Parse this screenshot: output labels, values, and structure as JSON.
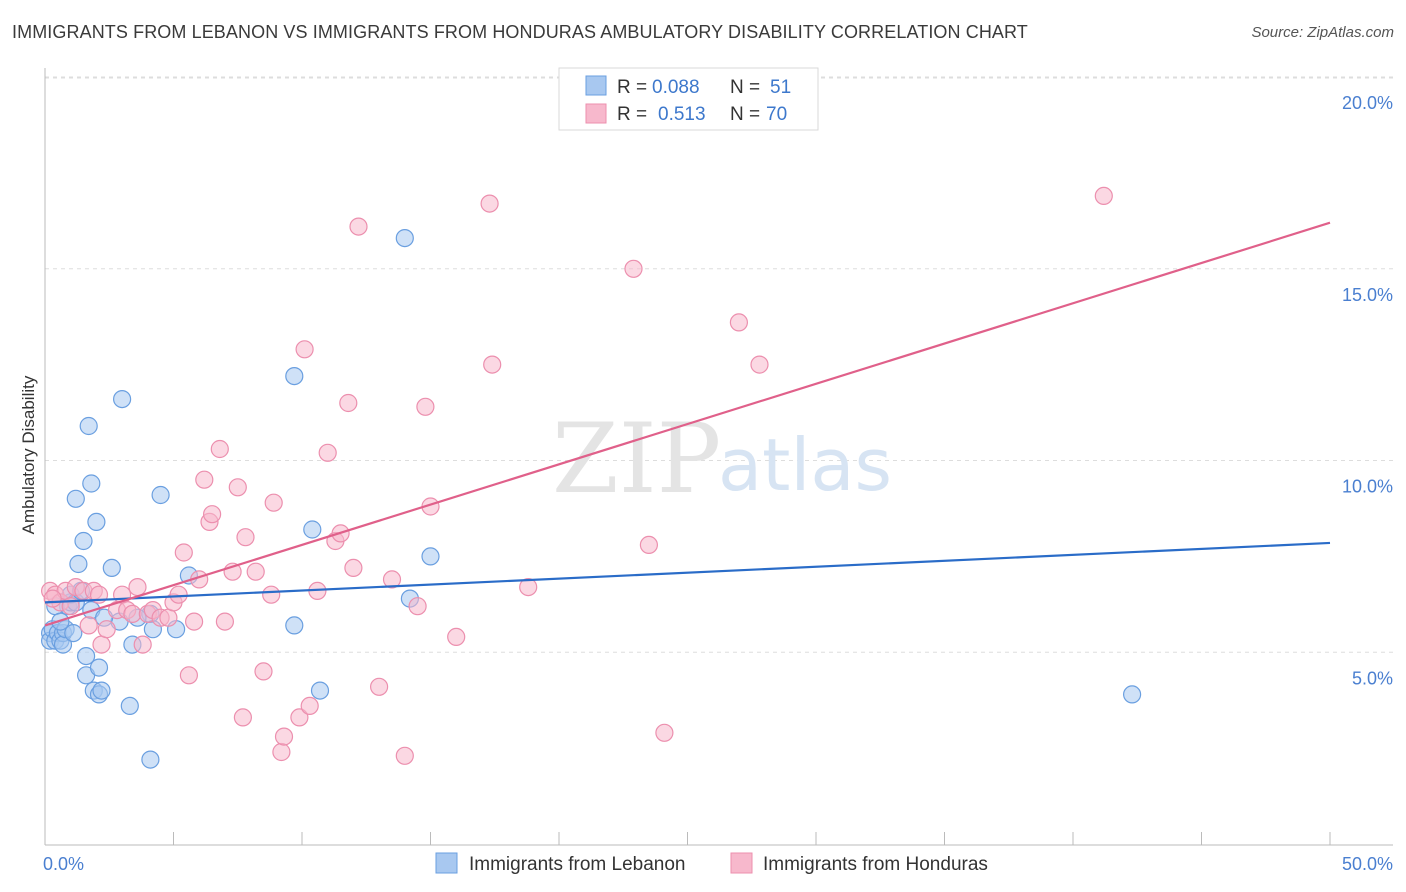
{
  "header": {
    "title": "IMMIGRANTS FROM LEBANON VS IMMIGRANTS FROM HONDURAS AMBULATORY DISABILITY CORRELATION CHART",
    "source": "Source: ZipAtlas.com"
  },
  "watermark": {
    "zip": "ZIP",
    "atlas": "atlas"
  },
  "legend": {
    "items": [
      {
        "r_label": "R =",
        "r_value": "0.088",
        "n_label": "N =",
        "n_value": "51"
      },
      {
        "r_label": "R =",
        "r_value": "0.513",
        "n_label": "N =",
        "n_value": "70"
      }
    ]
  },
  "colors": {
    "lebanon_fill": "#a8c8f0",
    "lebanon_stroke": "#6a9fe0",
    "lebanon_line": "#2a6cc8",
    "honduras_fill": "#f7b8cc",
    "honduras_stroke": "#ec8fae",
    "honduras_line": "#e0608a",
    "grid": "#dddddd",
    "tick_text": "#4a7fd0"
  },
  "chart_data": {
    "type": "scatter",
    "title": "IMMIGRANTS FROM LEBANON VS IMMIGRANTS FROM HONDURAS AMBULATORY DISABILITY CORRELATION CHART",
    "xlabel": "",
    "ylabel": "Ambulatory Disability",
    "xlim": [
      0,
      50
    ],
    "ylim": [
      0,
      20.5
    ],
    "x_tick_labels": [
      "0.0%",
      "50.0%"
    ],
    "y_ticks": [
      5,
      10,
      15,
      20
    ],
    "y_tick_labels": [
      "5.0%",
      "10.0%",
      "15.0%",
      "20.0%"
    ],
    "grid": true,
    "legend_position": "top-center",
    "series": [
      {
        "name": "Immigrants from Lebanon",
        "r": 0.088,
        "n": 51,
        "trend": {
          "x": [
            0,
            50
          ],
          "y": [
            6.3,
            7.85
          ]
        },
        "points": [
          [
            0.2,
            5.5
          ],
          [
            0.2,
            5.3
          ],
          [
            0.3,
            5.6
          ],
          [
            0.4,
            5.3
          ],
          [
            0.5,
            5.5
          ],
          [
            0.6,
            5.3
          ],
          [
            0.7,
            5.5
          ],
          [
            0.7,
            5.2
          ],
          [
            0.8,
            5.6
          ],
          [
            0.9,
            6.2
          ],
          [
            1.0,
            6.3
          ],
          [
            1.0,
            6.5
          ],
          [
            1.1,
            5.5
          ],
          [
            1.2,
            9.0
          ],
          [
            1.2,
            6.3
          ],
          [
            1.3,
            7.3
          ],
          [
            1.5,
            7.9
          ],
          [
            1.6,
            4.9
          ],
          [
            1.6,
            4.4
          ],
          [
            1.7,
            10.9
          ],
          [
            1.8,
            9.4
          ],
          [
            1.8,
            6.1
          ],
          [
            1.9,
            4.0
          ],
          [
            2.0,
            8.4
          ],
          [
            2.1,
            3.9
          ],
          [
            2.1,
            4.6
          ],
          [
            2.2,
            4.0
          ],
          [
            2.6,
            7.2
          ],
          [
            2.9,
            5.8
          ],
          [
            3.0,
            11.6
          ],
          [
            3.3,
            3.6
          ],
          [
            3.4,
            5.2
          ],
          [
            4.1,
            2.2
          ],
          [
            4.1,
            6.0
          ],
          [
            4.2,
            5.6
          ],
          [
            4.5,
            9.1
          ],
          [
            5.1,
            5.6
          ],
          [
            5.6,
            7.0
          ],
          [
            9.7,
            12.2
          ],
          [
            9.7,
            5.7
          ],
          [
            10.4,
            8.2
          ],
          [
            10.7,
            4.0
          ],
          [
            14.0,
            15.8
          ],
          [
            14.2,
            6.4
          ],
          [
            15.0,
            7.5
          ],
          [
            42.3,
            3.9
          ],
          [
            0.4,
            6.2
          ],
          [
            0.6,
            5.8
          ],
          [
            1.4,
            6.6
          ],
          [
            2.3,
            5.9
          ],
          [
            3.6,
            5.9
          ]
        ]
      },
      {
        "name": "Immigrants from Honduras",
        "r": 0.513,
        "n": 70,
        "trend": {
          "x": [
            0,
            50
          ],
          "y": [
            5.7,
            16.2
          ]
        },
        "points": [
          [
            0.2,
            6.6
          ],
          [
            0.4,
            6.5
          ],
          [
            0.6,
            6.3
          ],
          [
            0.8,
            6.6
          ],
          [
            1.0,
            6.2
          ],
          [
            1.2,
            6.7
          ],
          [
            1.5,
            6.6
          ],
          [
            1.7,
            5.7
          ],
          [
            1.9,
            6.6
          ],
          [
            2.1,
            6.5
          ],
          [
            2.2,
            5.2
          ],
          [
            2.4,
            5.6
          ],
          [
            2.8,
            6.1
          ],
          [
            3.0,
            6.5
          ],
          [
            3.2,
            6.1
          ],
          [
            3.4,
            6.0
          ],
          [
            3.6,
            6.7
          ],
          [
            3.8,
            5.2
          ],
          [
            4.0,
            6.0
          ],
          [
            4.2,
            6.1
          ],
          [
            4.5,
            5.9
          ],
          [
            4.8,
            5.9
          ],
          [
            5.0,
            6.3
          ],
          [
            5.2,
            6.5
          ],
          [
            5.4,
            7.6
          ],
          [
            5.6,
            4.4
          ],
          [
            5.8,
            5.8
          ],
          [
            6.0,
            6.9
          ],
          [
            6.2,
            9.5
          ],
          [
            6.4,
            8.4
          ],
          [
            6.5,
            8.6
          ],
          [
            6.8,
            10.3
          ],
          [
            7.0,
            5.8
          ],
          [
            7.3,
            7.1
          ],
          [
            7.5,
            9.3
          ],
          [
            7.7,
            3.3
          ],
          [
            7.8,
            8.0
          ],
          [
            8.2,
            7.1
          ],
          [
            8.5,
            4.5
          ],
          [
            8.8,
            6.5
          ],
          [
            8.9,
            8.9
          ],
          [
            9.2,
            2.4
          ],
          [
            9.3,
            2.8
          ],
          [
            9.9,
            3.3
          ],
          [
            10.1,
            12.9
          ],
          [
            10.3,
            3.6
          ],
          [
            10.6,
            6.6
          ],
          [
            11.0,
            10.2
          ],
          [
            11.3,
            7.9
          ],
          [
            11.5,
            8.1
          ],
          [
            11.8,
            11.5
          ],
          [
            12.0,
            7.2
          ],
          [
            12.2,
            16.1
          ],
          [
            13.0,
            4.1
          ],
          [
            13.5,
            6.9
          ],
          [
            14.0,
            2.3
          ],
          [
            14.5,
            6.2
          ],
          [
            14.8,
            11.4
          ],
          [
            15.0,
            8.8
          ],
          [
            16.0,
            5.4
          ],
          [
            17.3,
            16.7
          ],
          [
            17.4,
            12.5
          ],
          [
            18.8,
            6.7
          ],
          [
            22.9,
            15.0
          ],
          [
            23.5,
            7.8
          ],
          [
            24.1,
            2.9
          ],
          [
            27.0,
            13.6
          ],
          [
            27.8,
            12.5
          ],
          [
            41.2,
            16.9
          ],
          [
            0.3,
            6.4
          ]
        ]
      }
    ]
  },
  "bottom_legend": {
    "items": [
      {
        "label": "Immigrants from Lebanon"
      },
      {
        "label": "Immigrants from Honduras"
      }
    ]
  }
}
